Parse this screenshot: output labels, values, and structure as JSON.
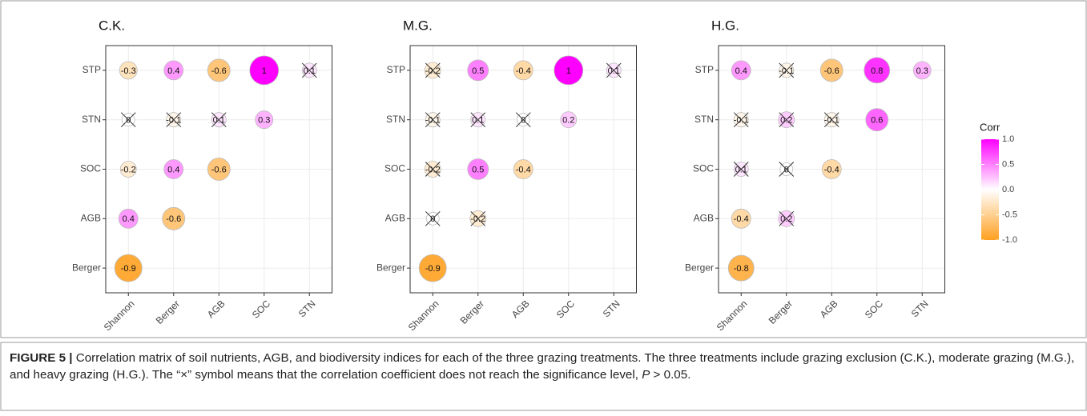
{
  "chart_data": [
    {
      "type": "corrplot",
      "title": "C.K.",
      "x": [
        "Shannon",
        "Berger",
        "AGB",
        "SOC",
        "STN"
      ],
      "y": [
        "STP",
        "STN",
        "SOC",
        "AGB",
        "Berger"
      ],
      "values": [
        [
          -0.3,
          0.4,
          -0.6,
          1,
          0.1
        ],
        [
          0,
          -0.1,
          0.1,
          0.3,
          null
        ],
        [
          -0.2,
          0.4,
          -0.6,
          null,
          null
        ],
        [
          0.4,
          -0.6,
          null,
          null,
          null
        ],
        [
          -0.9,
          null,
          null,
          null,
          null
        ]
      ],
      "significant": [
        [
          true,
          true,
          true,
          true,
          false
        ],
        [
          false,
          false,
          false,
          true,
          null
        ],
        [
          true,
          true,
          true,
          null,
          null
        ],
        [
          true,
          true,
          null,
          null,
          null
        ],
        [
          true,
          null,
          null,
          null,
          null
        ]
      ],
      "clim": [
        -1,
        1
      ],
      "grid": true
    },
    {
      "type": "corrplot",
      "title": "M.G.",
      "x": [
        "Shannon",
        "Berger",
        "AGB",
        "SOC",
        "STN"
      ],
      "y": [
        "STP",
        "STN",
        "SOC",
        "AGB",
        "Berger"
      ],
      "values": [
        [
          -0.2,
          0.5,
          -0.4,
          1,
          0.1
        ],
        [
          -0.1,
          0.1,
          0,
          0.2,
          null
        ],
        [
          -0.2,
          0.5,
          -0.4,
          null,
          null
        ],
        [
          0,
          -0.2,
          null,
          null,
          null
        ],
        [
          -0.9,
          null,
          null,
          null,
          null
        ]
      ],
      "significant": [
        [
          false,
          true,
          true,
          true,
          false
        ],
        [
          false,
          false,
          false,
          true,
          null
        ],
        [
          false,
          true,
          true,
          null,
          null
        ],
        [
          false,
          false,
          null,
          null,
          null
        ],
        [
          true,
          null,
          null,
          null,
          null
        ]
      ],
      "clim": [
        -1,
        1
      ],
      "grid": true
    },
    {
      "type": "corrplot",
      "title": "H.G.",
      "x": [
        "Shannon",
        "Berger",
        "AGB",
        "SOC",
        "STN"
      ],
      "y": [
        "STP",
        "STN",
        "SOC",
        "AGB",
        "Berger"
      ],
      "values": [
        [
          0.4,
          -0.1,
          -0.6,
          0.8,
          0.3
        ],
        [
          -0.1,
          0.2,
          -0.1,
          0.6,
          null
        ],
        [
          0.1,
          0,
          -0.4,
          null,
          null
        ],
        [
          -0.4,
          0.2,
          null,
          null,
          null
        ],
        [
          -0.8,
          null,
          null,
          null,
          null
        ]
      ],
      "significant": [
        [
          true,
          false,
          true,
          true,
          true
        ],
        [
          false,
          false,
          false,
          true,
          null
        ],
        [
          false,
          false,
          true,
          null,
          null
        ],
        [
          true,
          false,
          null,
          null,
          null
        ],
        [
          true,
          null,
          null,
          null,
          null
        ]
      ],
      "clim": [
        -1,
        1
      ],
      "grid": true
    }
  ],
  "legend": {
    "title": "Corr",
    "colors": [
      "#ffa020",
      "#ffffff",
      "#ff00ff"
    ],
    "clim": [
      -1,
      1
    ],
    "ticks": [
      {
        "value": 1,
        "label": "1.0"
      },
      {
        "value": 0.5,
        "label": "0.5"
      },
      {
        "value": 0,
        "label": "0.0"
      },
      {
        "value": -0.5,
        "label": "-0.5"
      },
      {
        "value": -1,
        "label": "-1.0"
      }
    ]
  },
  "caption": {
    "label": "FIGURE 5 |",
    "text": " Correlation matrix of soil nutrients, AGB, and biodiversity indices for each of the three grazing treatments. The three treatments include grazing exclusion (C.K.), moderate grazing (M.G.), and heavy grazing (H.G.). The “×” symbol means that the correlation coefficient does not reach the significance level, ",
    "p": "P",
    "tail": " > 0.05."
  }
}
